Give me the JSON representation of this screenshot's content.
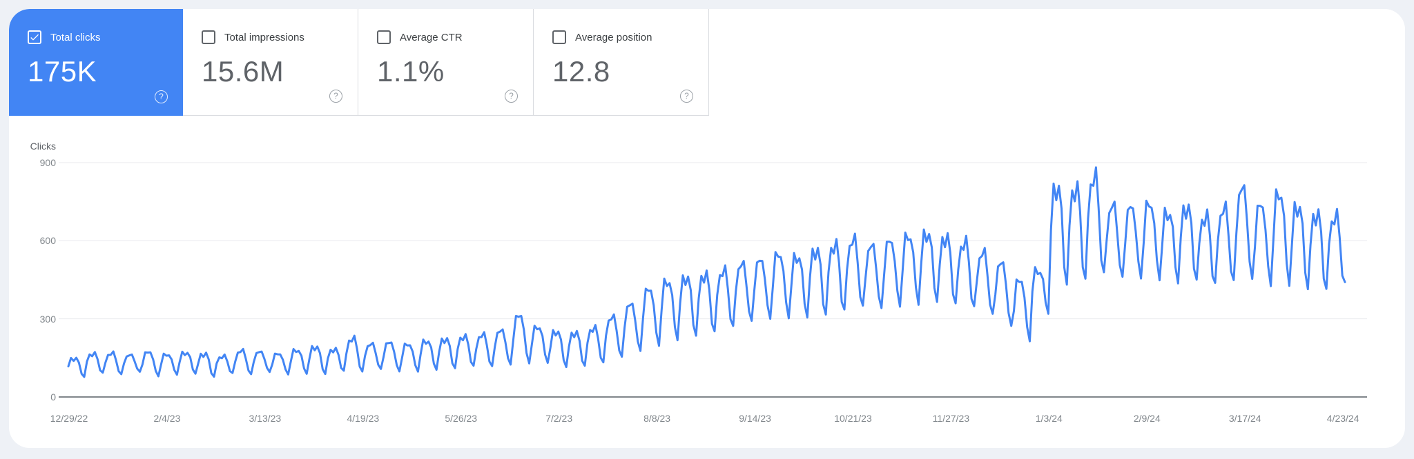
{
  "metrics": {
    "cards": [
      {
        "id": "total-clicks",
        "label": "Total clicks",
        "value": "175K",
        "checked": true,
        "selected": true
      },
      {
        "id": "total-impressions",
        "label": "Total impressions",
        "value": "15.6M",
        "checked": false,
        "selected": false
      },
      {
        "id": "average-ctr",
        "label": "Average CTR",
        "value": "1.1%",
        "checked": false,
        "selected": false
      },
      {
        "id": "average-position",
        "label": "Average position",
        "value": "12.8",
        "checked": false,
        "selected": false
      }
    ],
    "help_glyph": "?"
  },
  "colors": {
    "accent_blue": "#4285f4",
    "gridline": "#e8eaed",
    "axis": "#80868b",
    "tick_text": "#80868b"
  },
  "chart_data": {
    "type": "line",
    "title": "Clicks",
    "series_name": "Total clicks",
    "line_color": "#4285f4",
    "frequency": "daily",
    "date_start": "12/29/22",
    "date_end": "4/23/24",
    "ylim": [
      0,
      900
    ],
    "grid": "horizontal",
    "legend": "none",
    "y_ticks": [
      {
        "label": "900",
        "value": 900
      },
      {
        "label": "600",
        "value": 600
      },
      {
        "label": "300",
        "value": 300
      },
      {
        "label": "0",
        "value": 0
      }
    ],
    "x_ticks": [
      "12/29/22",
      "2/4/23",
      "3/13/23",
      "4/19/23",
      "5/26/23",
      "7/2/23",
      "8/8/23",
      "9/14/23",
      "10/21/23",
      "11/27/23",
      "1/3/24",
      "2/9/24",
      "3/17/24",
      "4/23/24"
    ],
    "x_tick_day_interval": 37,
    "weekly_peak_trough": [
      [
        150,
        78
      ],
      [
        168,
        92
      ],
      [
        170,
        85
      ],
      [
        162,
        95
      ],
      [
        175,
        80
      ],
      [
        165,
        88
      ],
      [
        172,
        92
      ],
      [
        168,
        78
      ],
      [
        158,
        90
      ],
      [
        180,
        85
      ],
      [
        175,
        95
      ],
      [
        168,
        88
      ],
      [
        182,
        92
      ],
      [
        195,
        90
      ],
      [
        185,
        100
      ],
      [
        228,
        95
      ],
      [
        205,
        105
      ],
      [
        212,
        98
      ],
      [
        205,
        100
      ],
      [
        218,
        108
      ],
      [
        225,
        112
      ],
      [
        235,
        118
      ],
      [
        242,
        115
      ],
      [
        258,
        122
      ],
      [
        318,
        130
      ],
      [
        272,
        135
      ],
      [
        255,
        118
      ],
      [
        250,
        120
      ],
      [
        268,
        130
      ],
      [
        310,
        150
      ],
      [
        360,
        175
      ],
      [
        420,
        200
      ],
      [
        450,
        225
      ],
      [
        465,
        240
      ],
      [
        475,
        250
      ],
      [
        490,
        265
      ],
      [
        515,
        285
      ],
      [
        530,
        300
      ],
      [
        555,
        310
      ],
      [
        545,
        315
      ],
      [
        570,
        320
      ],
      [
        590,
        330
      ],
      [
        610,
        340
      ],
      [
        585,
        335
      ],
      [
        605,
        350
      ],
      [
        625,
        365
      ],
      [
        635,
        375
      ],
      [
        620,
        360
      ],
      [
        600,
        340
      ],
      [
        560,
        310
      ],
      [
        520,
        270
      ],
      [
        455,
        218
      ],
      [
        490,
        330
      ],
      [
        815,
        440
      ],
      [
        810,
        450
      ],
      [
        855,
        465
      ],
      [
        740,
        450
      ],
      [
        735,
        455
      ],
      [
        750,
        460
      ],
      [
        715,
        450
      ],
      [
        735,
        455
      ],
      [
        700,
        430
      ],
      [
        730,
        435
      ],
      [
        810,
        445
      ],
      [
        745,
        430
      ],
      [
        790,
        440
      ],
      [
        740,
        425
      ],
      [
        710,
        415
      ],
      [
        700,
        430
      ]
    ],
    "weekday_shape": [
      0.52,
      0.96,
      0.9,
      1.0,
      0.7,
      0.18,
      0.0
    ],
    "notes": "Daily Total clicks series; weekly sawtooth (weekday highs, weekend lows). Baseline ~80-230 Jan-Jun 2023, gradual rise Jul-Aug, plateau ~300-640 Sep-Dec, dip to ~220 around 12/24/23, peak ~855 late Jan 2024, then ~400-810 through 4/23/24."
  }
}
